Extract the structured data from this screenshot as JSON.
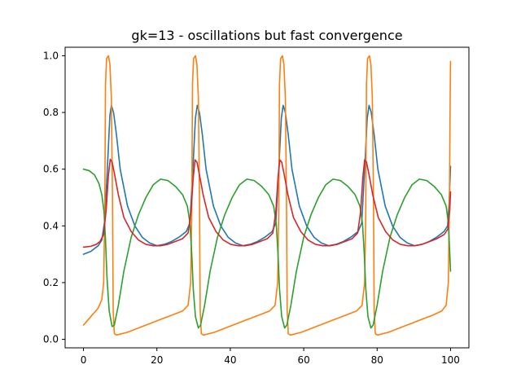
{
  "chart_data": {
    "type": "line",
    "title": "gk=13 - oscillations but fast convergence",
    "xlabel": "",
    "ylabel": "",
    "xlim": [
      -5,
      105
    ],
    "ylim": [
      -0.03,
      1.03
    ],
    "x_ticks": [
      0,
      20,
      40,
      60,
      80,
      100
    ],
    "y_ticks": [
      0.0,
      0.2,
      0.4,
      0.6,
      0.8,
      1.0
    ],
    "x_tick_labels": [
      "0",
      "20",
      "40",
      "60",
      "80",
      "100"
    ],
    "y_tick_labels": [
      "0.0",
      "0.2",
      "0.4",
      "0.6",
      "0.8",
      "1.0"
    ],
    "grid": false,
    "legend": "none",
    "series": [
      {
        "color": "#1f77b4",
        "points": [
          [
            0,
            0.3
          ],
          [
            2,
            0.31
          ],
          [
            4,
            0.33
          ],
          [
            5,
            0.35
          ],
          [
            5.8,
            0.42
          ],
          [
            6.5,
            0.6
          ],
          [
            7.2,
            0.79
          ],
          [
            7.6,
            0.825
          ],
          [
            8.2,
            0.8
          ],
          [
            9,
            0.72
          ],
          [
            10,
            0.6
          ],
          [
            12,
            0.47
          ],
          [
            14,
            0.4
          ],
          [
            16,
            0.36
          ],
          [
            18,
            0.34
          ],
          [
            20,
            0.33
          ],
          [
            22,
            0.335
          ],
          [
            24,
            0.345
          ],
          [
            26,
            0.36
          ],
          [
            28,
            0.38
          ],
          [
            29,
            0.41
          ],
          [
            29.8,
            0.6
          ],
          [
            30.5,
            0.78
          ],
          [
            31,
            0.825
          ],
          [
            31.6,
            0.8
          ],
          [
            32.4,
            0.72
          ],
          [
            33.4,
            0.6
          ],
          [
            35.4,
            0.47
          ],
          [
            37.4,
            0.4
          ],
          [
            39.4,
            0.36
          ],
          [
            41.4,
            0.34
          ],
          [
            43.4,
            0.33
          ],
          [
            45.4,
            0.335
          ],
          [
            47.4,
            0.345
          ],
          [
            49.4,
            0.36
          ],
          [
            51.4,
            0.38
          ],
          [
            52.4,
            0.41
          ],
          [
            53.2,
            0.6
          ],
          [
            53.9,
            0.78
          ],
          [
            54.4,
            0.825
          ],
          [
            55,
            0.8
          ],
          [
            55.8,
            0.72
          ],
          [
            56.8,
            0.6
          ],
          [
            58.8,
            0.47
          ],
          [
            60.8,
            0.4
          ],
          [
            62.8,
            0.36
          ],
          [
            64.8,
            0.34
          ],
          [
            66.8,
            0.33
          ],
          [
            68.8,
            0.335
          ],
          [
            70.8,
            0.345
          ],
          [
            72.8,
            0.36
          ],
          [
            74.8,
            0.38
          ],
          [
            75.8,
            0.41
          ],
          [
            76.6,
            0.6
          ],
          [
            77.3,
            0.78
          ],
          [
            77.8,
            0.825
          ],
          [
            78.4,
            0.8
          ],
          [
            79.2,
            0.72
          ],
          [
            80.2,
            0.6
          ],
          [
            82.2,
            0.47
          ],
          [
            84.2,
            0.4
          ],
          [
            86.2,
            0.36
          ],
          [
            88.2,
            0.34
          ],
          [
            90.2,
            0.33
          ],
          [
            92.2,
            0.335
          ],
          [
            94.2,
            0.345
          ],
          [
            96.2,
            0.36
          ],
          [
            98.2,
            0.38
          ],
          [
            99.2,
            0.4
          ],
          [
            99.6,
            0.48
          ],
          [
            100,
            0.61
          ]
        ]
      },
      {
        "color": "#ff7f0e",
        "points": [
          [
            0,
            0.05
          ],
          [
            1,
            0.065
          ],
          [
            2,
            0.08
          ],
          [
            3,
            0.095
          ],
          [
            4,
            0.11
          ],
          [
            5,
            0.14
          ],
          [
            5.5,
            0.2
          ],
          [
            5.8,
            0.45
          ],
          [
            6,
            0.9
          ],
          [
            6.3,
            0.99
          ],
          [
            6.8,
            1.0
          ],
          [
            7.2,
            0.97
          ],
          [
            7.6,
            0.85
          ],
          [
            7.9,
            0.5
          ],
          [
            8.1,
            0.1
          ],
          [
            8.4,
            0.02
          ],
          [
            9,
            0.015
          ],
          [
            12,
            0.025
          ],
          [
            16,
            0.045
          ],
          [
            20,
            0.065
          ],
          [
            24,
            0.085
          ],
          [
            27,
            0.1
          ],
          [
            28.5,
            0.12
          ],
          [
            29.2,
            0.2
          ],
          [
            29.5,
            0.45
          ],
          [
            29.7,
            0.9
          ],
          [
            30,
            0.99
          ],
          [
            30.5,
            1.0
          ],
          [
            30.9,
            0.97
          ],
          [
            31.3,
            0.85
          ],
          [
            31.6,
            0.5
          ],
          [
            31.8,
            0.1
          ],
          [
            32.1,
            0.02
          ],
          [
            32.7,
            0.015
          ],
          [
            35.7,
            0.025
          ],
          [
            39.7,
            0.045
          ],
          [
            43.7,
            0.065
          ],
          [
            47.7,
            0.085
          ],
          [
            50.7,
            0.1
          ],
          [
            52.2,
            0.12
          ],
          [
            52.9,
            0.2
          ],
          [
            53.2,
            0.45
          ],
          [
            53.4,
            0.9
          ],
          [
            53.7,
            0.99
          ],
          [
            54.2,
            1.0
          ],
          [
            54.6,
            0.97
          ],
          [
            55,
            0.85
          ],
          [
            55.3,
            0.5
          ],
          [
            55.5,
            0.1
          ],
          [
            55.8,
            0.02
          ],
          [
            56.4,
            0.015
          ],
          [
            59.4,
            0.025
          ],
          [
            63.4,
            0.045
          ],
          [
            67.4,
            0.065
          ],
          [
            71.4,
            0.085
          ],
          [
            74.4,
            0.1
          ],
          [
            75.9,
            0.12
          ],
          [
            76.6,
            0.2
          ],
          [
            76.9,
            0.45
          ],
          [
            77.1,
            0.9
          ],
          [
            77.4,
            0.99
          ],
          [
            77.9,
            1.0
          ],
          [
            78.3,
            0.97
          ],
          [
            78.7,
            0.85
          ],
          [
            79,
            0.5
          ],
          [
            79.2,
            0.1
          ],
          [
            79.5,
            0.02
          ],
          [
            80.1,
            0.015
          ],
          [
            83.1,
            0.025
          ],
          [
            87.1,
            0.045
          ],
          [
            91.1,
            0.065
          ],
          [
            95.1,
            0.085
          ],
          [
            97.6,
            0.1
          ],
          [
            98.8,
            0.12
          ],
          [
            99.4,
            0.2
          ],
          [
            99.7,
            0.5
          ],
          [
            99.9,
            0.85
          ],
          [
            100,
            0.98
          ]
        ]
      },
      {
        "color": "#2ca02c",
        "points": [
          [
            0,
            0.6
          ],
          [
            1.5,
            0.595
          ],
          [
            3,
            0.58
          ],
          [
            4.2,
            0.55
          ],
          [
            5,
            0.51
          ],
          [
            5.6,
            0.45
          ],
          [
            6,
            0.35
          ],
          [
            6.4,
            0.22
          ],
          [
            7,
            0.1
          ],
          [
            7.8,
            0.045
          ],
          [
            8.4,
            0.05
          ],
          [
            9.5,
            0.12
          ],
          [
            11,
            0.24
          ],
          [
            13,
            0.36
          ],
          [
            15,
            0.44
          ],
          [
            17,
            0.5
          ],
          [
            19,
            0.545
          ],
          [
            21,
            0.565
          ],
          [
            23,
            0.56
          ],
          [
            25,
            0.54
          ],
          [
            27,
            0.51
          ],
          [
            28.3,
            0.47
          ],
          [
            29,
            0.41
          ],
          [
            29.5,
            0.3
          ],
          [
            29.9,
            0.18
          ],
          [
            30.5,
            0.08
          ],
          [
            31.3,
            0.04
          ],
          [
            31.9,
            0.05
          ],
          [
            33,
            0.12
          ],
          [
            34.5,
            0.24
          ],
          [
            36.5,
            0.36
          ],
          [
            38.5,
            0.44
          ],
          [
            40.5,
            0.5
          ],
          [
            42.5,
            0.545
          ],
          [
            44.5,
            0.565
          ],
          [
            46.5,
            0.56
          ],
          [
            48.5,
            0.54
          ],
          [
            50.5,
            0.51
          ],
          [
            51.8,
            0.47
          ],
          [
            52.5,
            0.41
          ],
          [
            53,
            0.3
          ],
          [
            53.4,
            0.18
          ],
          [
            54,
            0.08
          ],
          [
            54.8,
            0.04
          ],
          [
            55.4,
            0.05
          ],
          [
            56.5,
            0.12
          ],
          [
            58,
            0.24
          ],
          [
            60,
            0.36
          ],
          [
            62,
            0.44
          ],
          [
            64,
            0.5
          ],
          [
            66,
            0.545
          ],
          [
            68,
            0.565
          ],
          [
            70,
            0.56
          ],
          [
            72,
            0.54
          ],
          [
            74,
            0.51
          ],
          [
            75.3,
            0.47
          ],
          [
            76,
            0.41
          ],
          [
            76.5,
            0.3
          ],
          [
            76.9,
            0.18
          ],
          [
            77.5,
            0.08
          ],
          [
            78.3,
            0.04
          ],
          [
            78.9,
            0.05
          ],
          [
            80,
            0.12
          ],
          [
            81.5,
            0.24
          ],
          [
            83.5,
            0.36
          ],
          [
            85.5,
            0.44
          ],
          [
            87.5,
            0.5
          ],
          [
            89.5,
            0.545
          ],
          [
            91.5,
            0.565
          ],
          [
            93.5,
            0.56
          ],
          [
            95.5,
            0.54
          ],
          [
            97.5,
            0.51
          ],
          [
            98.8,
            0.47
          ],
          [
            99.4,
            0.41
          ],
          [
            99.8,
            0.3
          ],
          [
            100,
            0.24
          ]
        ]
      },
      {
        "color": "#d62728",
        "points": [
          [
            0,
            0.325
          ],
          [
            2,
            0.328
          ],
          [
            3.5,
            0.335
          ],
          [
            4.5,
            0.345
          ],
          [
            5.5,
            0.37
          ],
          [
            6.2,
            0.46
          ],
          [
            6.8,
            0.58
          ],
          [
            7.3,
            0.635
          ],
          [
            7.8,
            0.625
          ],
          [
            8.5,
            0.58
          ],
          [
            9.5,
            0.51
          ],
          [
            11,
            0.43
          ],
          [
            13,
            0.38
          ],
          [
            15,
            0.35
          ],
          [
            17,
            0.335
          ],
          [
            19,
            0.33
          ],
          [
            21,
            0.33
          ],
          [
            23,
            0.335
          ],
          [
            25,
            0.345
          ],
          [
            27,
            0.355
          ],
          [
            28.5,
            0.375
          ],
          [
            29.3,
            0.45
          ],
          [
            29.9,
            0.57
          ],
          [
            30.4,
            0.633
          ],
          [
            30.9,
            0.625
          ],
          [
            31.6,
            0.58
          ],
          [
            32.6,
            0.51
          ],
          [
            34.1,
            0.43
          ],
          [
            36.1,
            0.38
          ],
          [
            38.1,
            0.35
          ],
          [
            40.1,
            0.335
          ],
          [
            42.1,
            0.33
          ],
          [
            44.1,
            0.33
          ],
          [
            46.1,
            0.335
          ],
          [
            48.1,
            0.345
          ],
          [
            50.1,
            0.355
          ],
          [
            51.6,
            0.375
          ],
          [
            52.4,
            0.45
          ],
          [
            53,
            0.57
          ],
          [
            53.5,
            0.633
          ],
          [
            54,
            0.625
          ],
          [
            54.7,
            0.58
          ],
          [
            55.7,
            0.51
          ],
          [
            57.2,
            0.43
          ],
          [
            59.2,
            0.38
          ],
          [
            61.2,
            0.35
          ],
          [
            63.2,
            0.335
          ],
          [
            65.2,
            0.33
          ],
          [
            67.2,
            0.33
          ],
          [
            69.2,
            0.335
          ],
          [
            71.2,
            0.345
          ],
          [
            73.2,
            0.355
          ],
          [
            74.7,
            0.375
          ],
          [
            75.5,
            0.45
          ],
          [
            76.1,
            0.57
          ],
          [
            76.6,
            0.633
          ],
          [
            77.1,
            0.625
          ],
          [
            77.8,
            0.58
          ],
          [
            78.8,
            0.51
          ],
          [
            80.3,
            0.43
          ],
          [
            82.3,
            0.38
          ],
          [
            84.3,
            0.35
          ],
          [
            86.3,
            0.335
          ],
          [
            88.3,
            0.33
          ],
          [
            90.3,
            0.33
          ],
          [
            92.3,
            0.335
          ],
          [
            94.3,
            0.345
          ],
          [
            96.3,
            0.355
          ],
          [
            98.3,
            0.37
          ],
          [
            99.3,
            0.39
          ],
          [
            99.8,
            0.46
          ],
          [
            100,
            0.52
          ]
        ]
      }
    ]
  }
}
